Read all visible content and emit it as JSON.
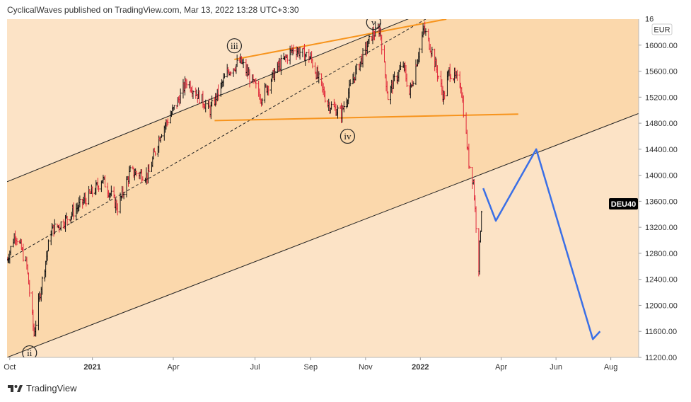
{
  "header": {
    "published_text": "CyclicalWaves published on TradingView.com, Mar 13, 2022 13:28 UTC+3:30"
  },
  "footer": {
    "brand": "TradingView"
  },
  "chart_data": {
    "type": "ohlc-bar",
    "symbol_badge": "DEU40",
    "currency": "EUR",
    "colors": {
      "up": "#111111",
      "down": "#e0283a",
      "background": "#fce3c6",
      "channel": "#fbd8ac",
      "orange": "#f7941d",
      "projection": "#3a6fe6",
      "price_badge": "#000000"
    },
    "y_axis": {
      "min": 11200,
      "max": 16400,
      "ticks": [
        16000,
        15600,
        15200,
        14800,
        14400,
        14000,
        13600,
        13200,
        12800,
        12400,
        12000,
        11600,
        11200
      ]
    },
    "x_axis": {
      "labels": [
        "Oct",
        "2021",
        "Apr",
        "Jul",
        "Sep",
        "Nov",
        "2022",
        "Apr",
        "Jun",
        "Aug"
      ],
      "label_dates": [
        "2020-10-01",
        "2021-01-01",
        "2021-04-01",
        "2021-07-01",
        "2021-09-01",
        "2021-11-01",
        "2022-01-01",
        "2022-04-01",
        "2022-06-01",
        "2022-08-01"
      ]
    },
    "price_path": [
      [
        "2020-09-28",
        12700
      ],
      [
        "2020-10-07",
        13100
      ],
      [
        "2020-10-13",
        12900
      ],
      [
        "2020-10-20",
        12600
      ],
      [
        "2020-10-28",
        11550
      ],
      [
        "2020-11-05",
        12300
      ],
      [
        "2020-11-16",
        13150
      ],
      [
        "2020-12-01",
        13300
      ],
      [
        "2020-12-15",
        13500
      ],
      [
        "2021-01-05",
        13800
      ],
      [
        "2021-01-12",
        13950
      ],
      [
        "2021-01-29",
        13500
      ],
      [
        "2021-02-12",
        14050
      ],
      [
        "2021-03-04",
        14000
      ],
      [
        "2021-03-18",
        14650
      ],
      [
        "2021-04-05",
        15100
      ],
      [
        "2021-04-16",
        15450
      ],
      [
        "2021-05-12",
        15000
      ],
      [
        "2021-06-01",
        15600
      ],
      [
        "2021-06-15",
        15750
      ],
      [
        "2021-07-08",
        15200
      ],
      [
        "2021-07-26",
        15650
      ],
      [
        "2021-08-13",
        15950
      ],
      [
        "2021-09-01",
        15800
      ],
      [
        "2021-09-20",
        15100
      ],
      [
        "2021-10-05",
        14950
      ],
      [
        "2021-10-20",
        15550
      ],
      [
        "2021-11-08",
        16150
      ],
      [
        "2021-11-17",
        16250
      ],
      [
        "2021-11-26",
        15200
      ],
      [
        "2021-12-01",
        15400
      ],
      [
        "2021-12-13",
        15700
      ],
      [
        "2021-12-20",
        15250
      ],
      [
        "2022-01-05",
        16250
      ],
      [
        "2022-01-14",
        15900
      ],
      [
        "2022-01-27",
        15200
      ],
      [
        "2022-02-02",
        15600
      ],
      [
        "2022-02-15",
        15400
      ],
      [
        "2022-02-24",
        14200
      ],
      [
        "2022-03-01",
        13900
      ],
      [
        "2022-03-07",
        12600
      ],
      [
        "2022-03-10",
        13500
      ],
      [
        "2022-03-11",
        13650
      ]
    ],
    "channel": {
      "upper_line": [
        [
          "2020-09-28",
          13900
        ],
        [
          "2022-07-20",
          17600
        ]
      ],
      "midline": [
        [
          "2020-09-28",
          12700
        ],
        [
          "2022-01-07",
          16400
        ]
      ],
      "lower_line": [
        [
          "2020-09-28",
          11200
        ],
        [
          "2022-09-01",
          14950
        ]
      ]
    },
    "orange_lines": {
      "top_trendline": [
        [
          "2021-06-08",
          15780
        ],
        [
          "2022-01-30",
          16400
        ]
      ],
      "neckline": [
        [
          "2021-05-17",
          14840
        ],
        [
          "2022-04-20",
          14940
        ]
      ]
    },
    "projection_path": [
      [
        "2022-03-12",
        13800
      ],
      [
        "2022-03-26",
        13300
      ],
      [
        "2022-05-10",
        14400
      ],
      [
        "2022-07-12",
        11480
      ],
      [
        "2022-07-20",
        11600
      ]
    ],
    "wave_labels": [
      {
        "text": "ii",
        "date": "2020-10-23",
        "price": 11270
      },
      {
        "text": "iii",
        "date": "2021-06-08",
        "price": 15990
      },
      {
        "text": "iv",
        "date": "2021-10-12",
        "price": 14600
      },
      {
        "text": "v",
        "date": "2021-11-10",
        "price": 16350
      }
    ],
    "last_price_label": "16",
    "grid": false
  }
}
